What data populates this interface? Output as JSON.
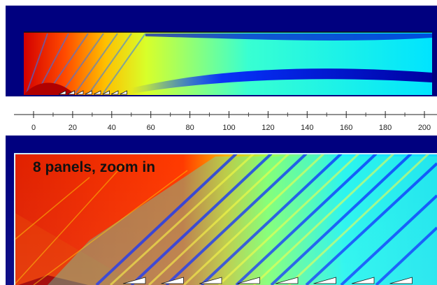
{
  "annotation": "8 panels, zoom in",
  "axis": {
    "ticks": [
      0,
      20,
      40,
      60,
      80,
      100,
      120,
      140,
      160,
      180,
      200
    ]
  },
  "colors": {
    "frame": "#00007f",
    "cold": "#0000c8",
    "cool": "#00c8ff",
    "mid": "#ffff00",
    "warm": "#ff7f00",
    "hot": "#d40000",
    "panel": "#ffffff"
  },
  "top_panel": {
    "panel_count": 8
  },
  "bottom_panel": {
    "panel_count": 8
  }
}
